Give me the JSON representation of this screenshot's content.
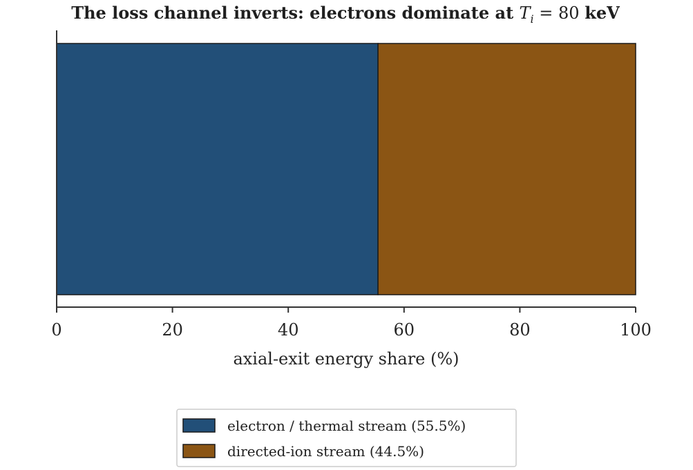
{
  "chart_data": {
    "type": "bar",
    "orientation": "horizontal-stacked",
    "title": {
      "prefix": "The loss channel inverts: electrons dominate at ",
      "var": "T",
      "subscript": "i",
      "equals": " = 80 ",
      "suffix": "keV"
    },
    "xlabel": "axial-exit energy share (%)",
    "ylabel": "",
    "xlim": [
      0,
      100
    ],
    "xticks": [
      0,
      20,
      40,
      60,
      80,
      100
    ],
    "grid": false,
    "legend_position": "bottom-center, below axes",
    "series": [
      {
        "name": "electron / thermal stream (55.5%)",
        "value": 55.5,
        "color": "#224f78"
      },
      {
        "name": "directed-ion stream (44.5%)",
        "value": 44.5,
        "color": "#8b5514"
      }
    ]
  },
  "colors": {
    "axis": "#333333",
    "bar_edge": "#1a1a1a",
    "legend_border": "#cccccc"
  }
}
